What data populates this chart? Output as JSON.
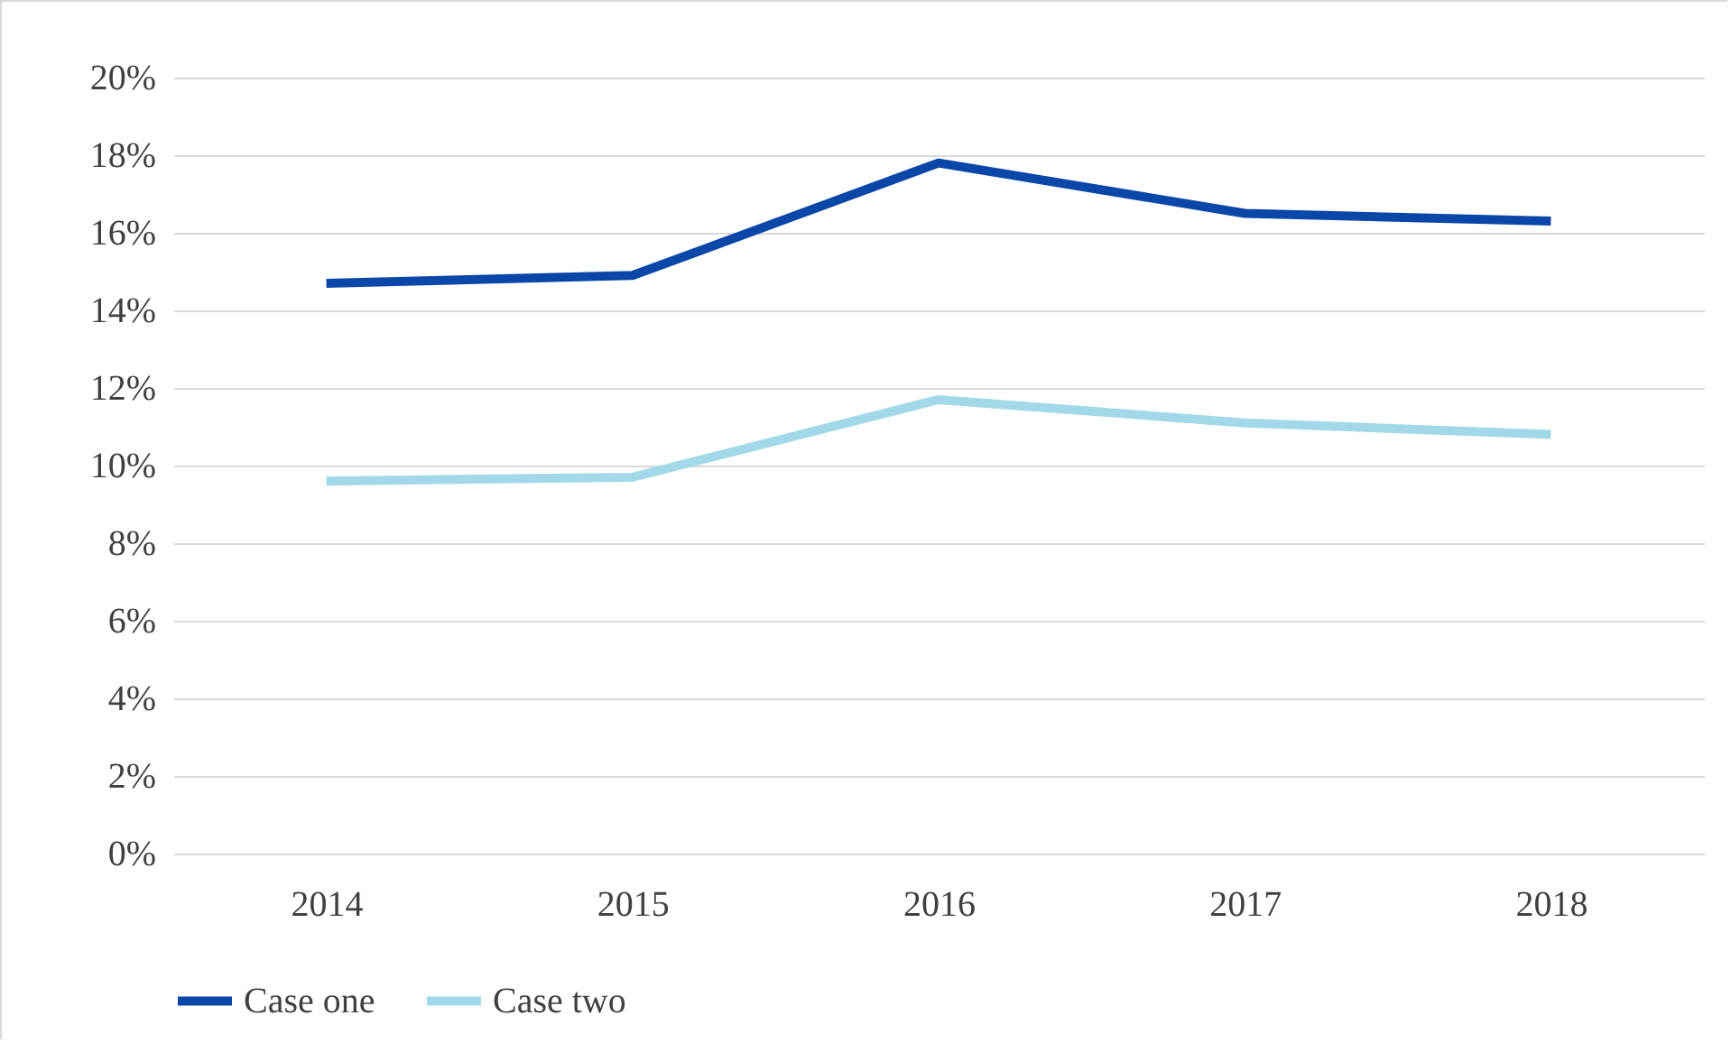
{
  "chart_data": {
    "type": "line",
    "categories": [
      "2014",
      "2015",
      "2016",
      "2017",
      "2018"
    ],
    "series": [
      {
        "name": "Case one",
        "color": "#0a47a9",
        "values": [
          14.7,
          14.9,
          17.8,
          16.5,
          16.3
        ]
      },
      {
        "name": "Case two",
        "color": "#a2d9e8",
        "values": [
          9.6,
          9.7,
          11.7,
          11.1,
          10.8
        ]
      }
    ],
    "ylim": [
      0,
      20
    ],
    "yticks": [
      {
        "value": 0,
        "label": "0%"
      },
      {
        "value": 2,
        "label": "2%"
      },
      {
        "value": 4,
        "label": "4%"
      },
      {
        "value": 6,
        "label": "6%"
      },
      {
        "value": 8,
        "label": "8%"
      },
      {
        "value": 10,
        "label": "10%"
      },
      {
        "value": 12,
        "label": "12%"
      },
      {
        "value": 14,
        "label": "14%"
      },
      {
        "value": 16,
        "label": "16%"
      },
      {
        "value": 18,
        "label": "18%"
      },
      {
        "value": 20,
        "label": "20%"
      }
    ],
    "grid": "y",
    "legend": "bottom",
    "marker": "none",
    "line_style": "solid"
  }
}
